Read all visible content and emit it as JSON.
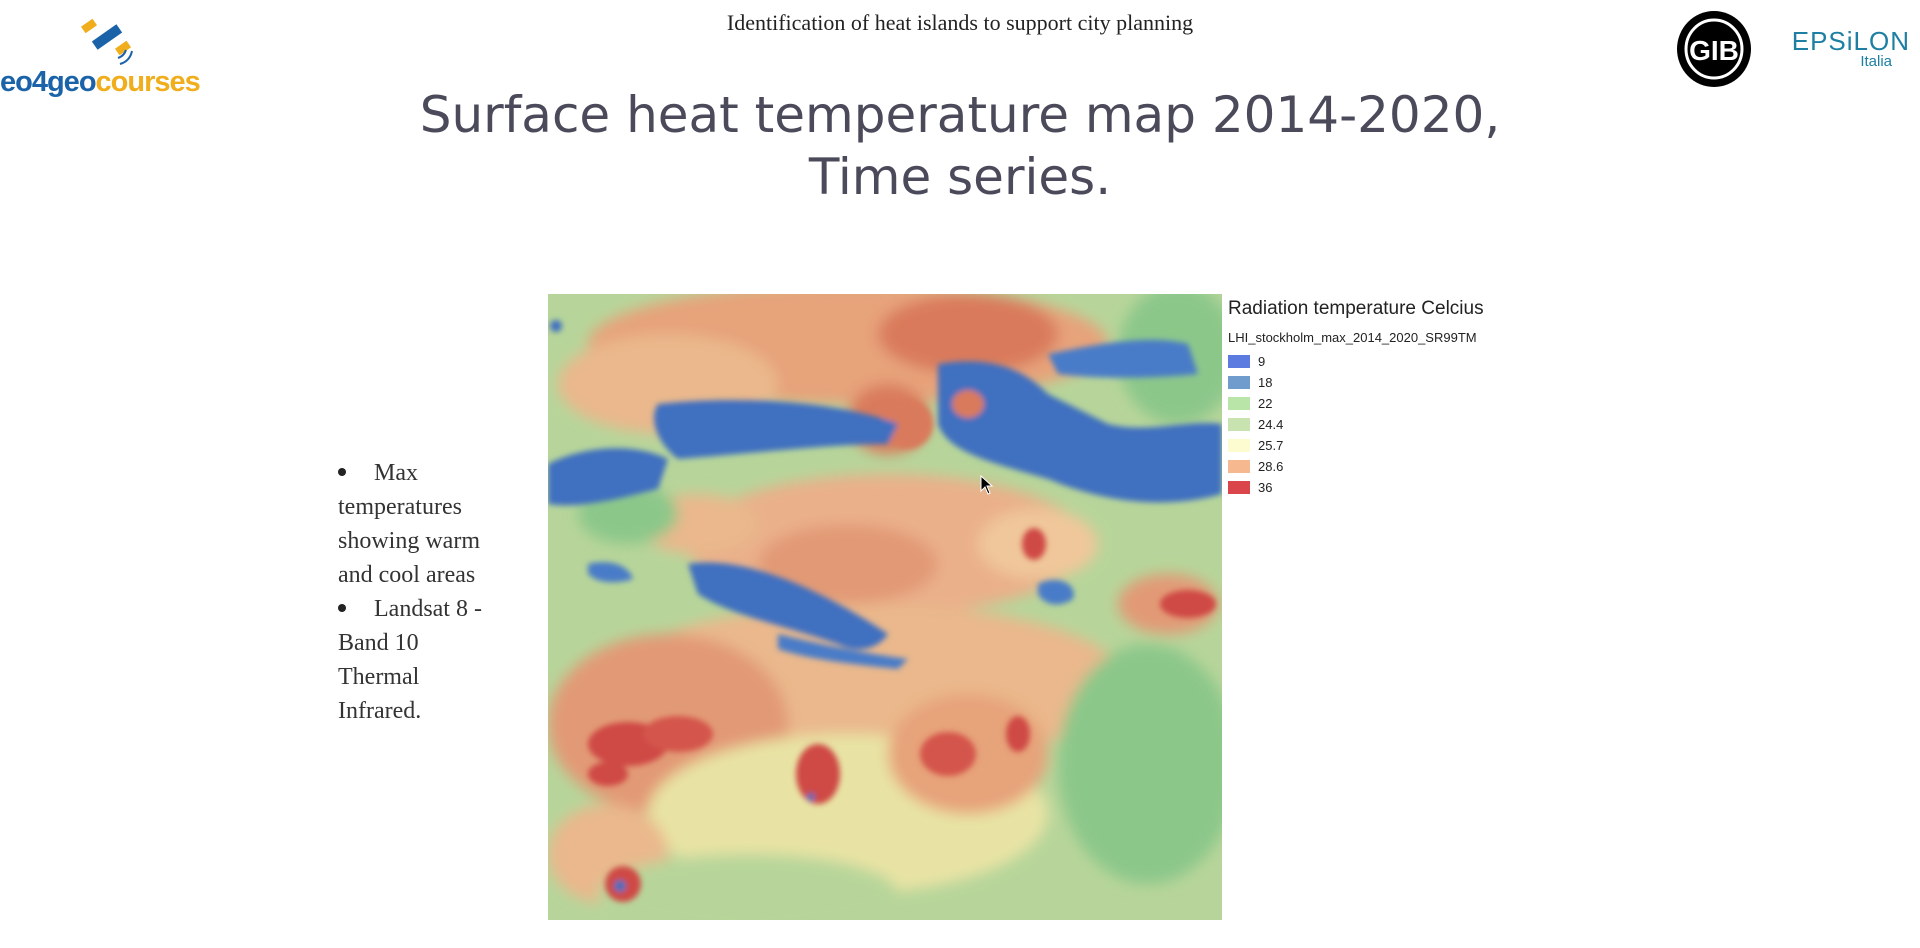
{
  "header": {
    "text": "Identification of heat islands to support city planning"
  },
  "logo_left": {
    "wordmark_a": "eo4geo",
    "wordmark_b": "courses",
    "icon": "satellite-icon"
  },
  "logo_right": {
    "circle_text": "GIB",
    "brand": "EPSiLON",
    "sub": "Italia"
  },
  "slide": {
    "title": "Surface heat temperature map 2014-2020, Time series."
  },
  "bullets": [
    "Max temperatures showing warm and cool areas",
    "Landsat 8 - Band 10 Thermal Infrared."
  ],
  "legend": {
    "title": "Radiation temperature Celcius",
    "layer": "LHI_stockholm_max_2014_2020_SR99TM",
    "items": [
      {
        "label": "9",
        "color": "#5b7be0"
      },
      {
        "label": "18",
        "color": "#6f9ccc"
      },
      {
        "label": "22",
        "color": "#b9e6a8"
      },
      {
        "label": "24.4",
        "color": "#c8e2b0"
      },
      {
        "label": "25.7",
        "color": "#fdfbd0"
      },
      {
        "label": "28.6",
        "color": "#f6b98f"
      },
      {
        "label": "36",
        "color": "#d9454a"
      }
    ]
  },
  "colors": {
    "water": "#3f6fc0",
    "cool": "#8cc78a",
    "mild": "#e8e3a4",
    "warm": "#e7a37a",
    "hot": "#cf4a45"
  }
}
